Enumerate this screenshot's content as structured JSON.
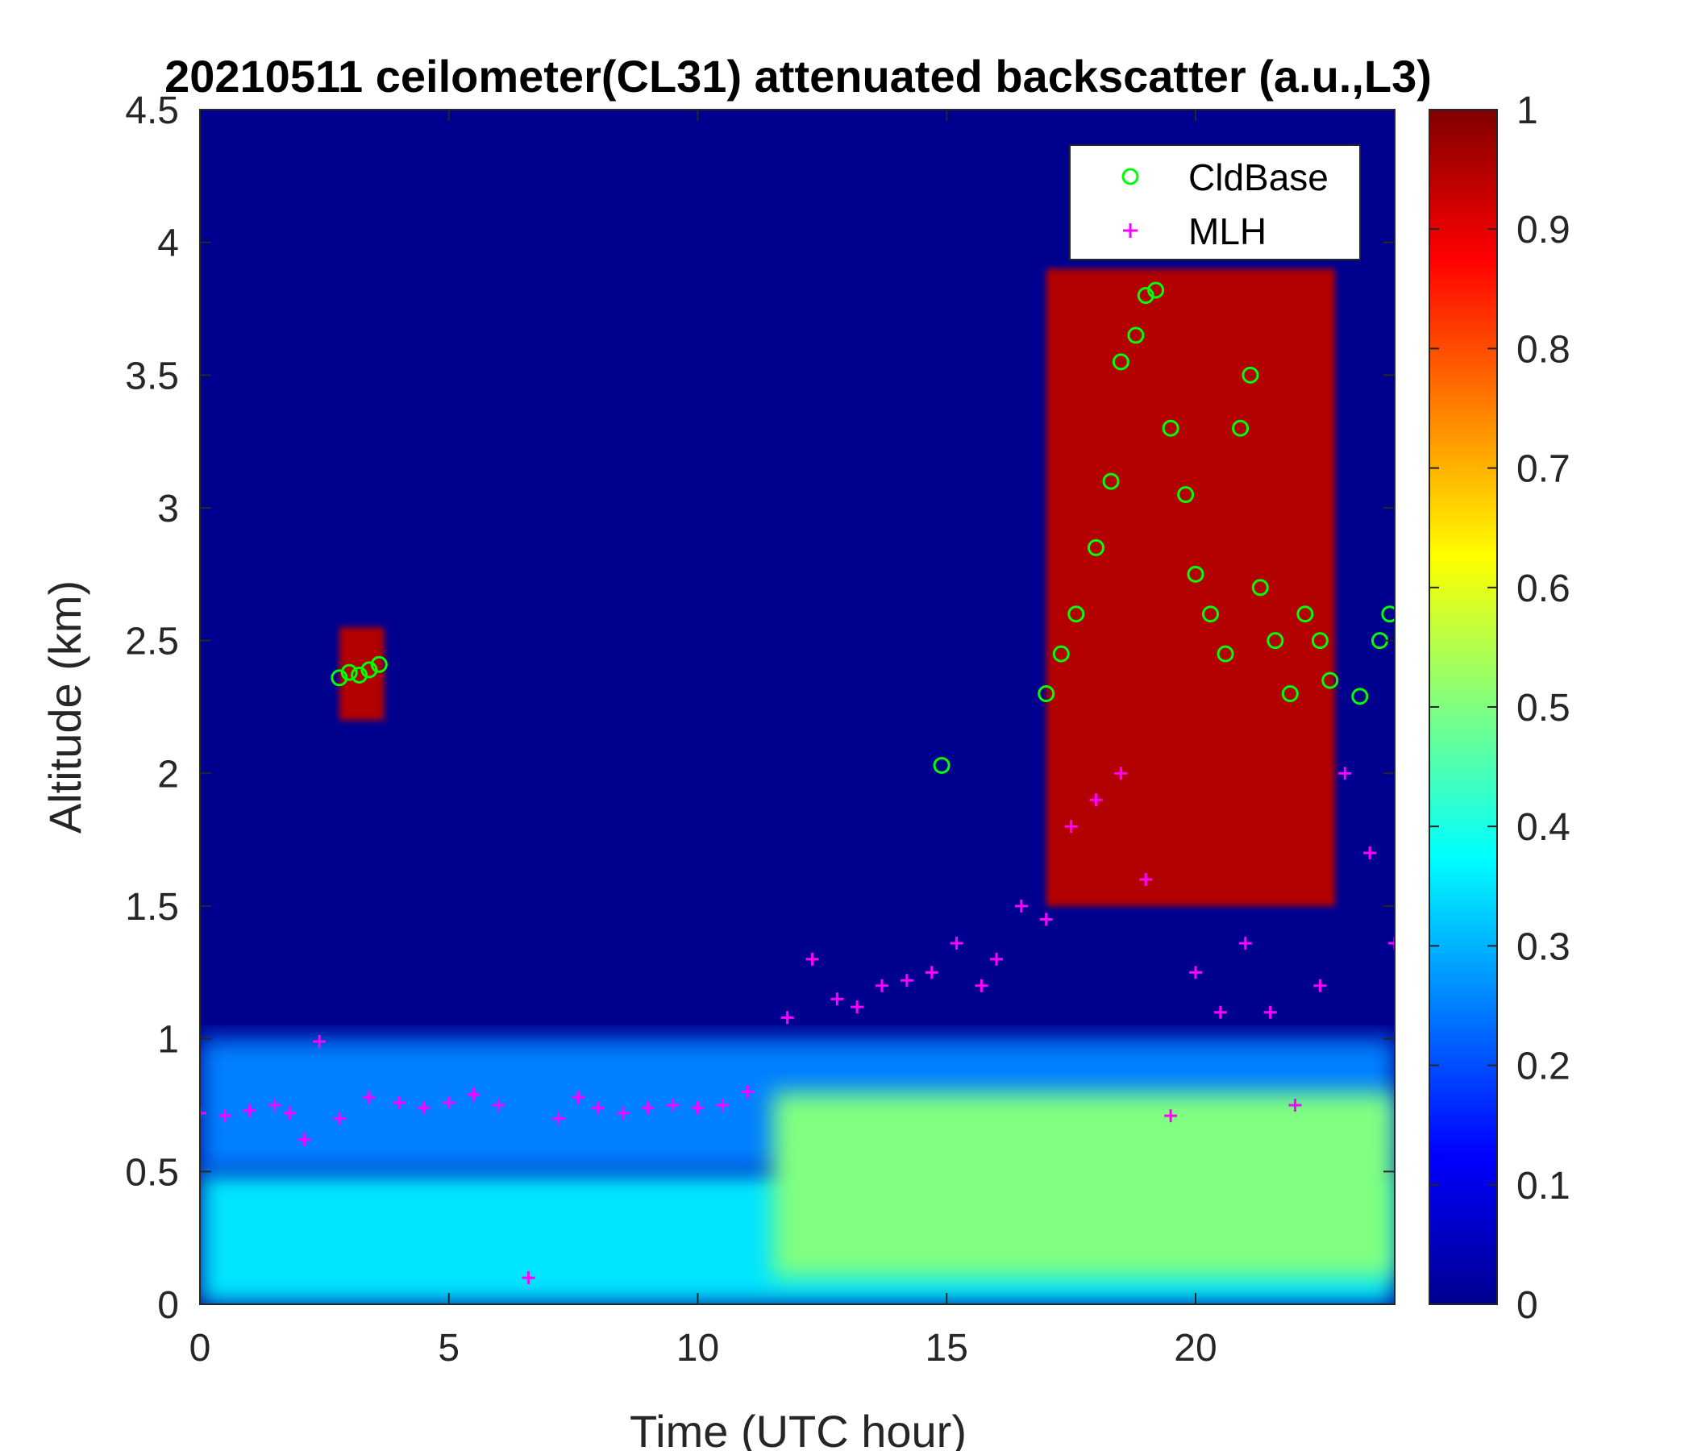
{
  "chart_data": {
    "type": "heatmap",
    "title": "20210511 ceilometer(CL31) attenuated backscatter (a.u.,L3)",
    "xlabel": "Time (UTC hour)",
    "ylabel": "Altitude (km)",
    "xlim": [
      0,
      24
    ],
    "ylim": [
      0,
      4.5
    ],
    "xticks": [
      "0",
      "5",
      "10",
      "15",
      "20"
    ],
    "yticks": [
      "0",
      "0.5",
      "1",
      "1.5",
      "2",
      "2.5",
      "3",
      "3.5",
      "4",
      "4.5"
    ],
    "colorbar": {
      "colormap": "jet",
      "clim": [
        0,
        1
      ],
      "ticks": [
        "0",
        "0.1",
        "0.2",
        "0.3",
        "0.4",
        "0.5",
        "0.6",
        "0.7",
        "0.8",
        "0.9",
        "1"
      ]
    },
    "legend": {
      "placement": "top-right",
      "entries": [
        {
          "label": "CldBase",
          "marker": "circle",
          "color": "#00ff00"
        },
        {
          "label": "MLH",
          "marker": "plus",
          "color": "#ff00ff"
        }
      ]
    },
    "backscatter_layers": [
      {
        "time": [
          0,
          24
        ],
        "altitude": [
          0,
          0.5
        ],
        "value": 0.35
      },
      {
        "time": [
          0,
          24
        ],
        "altitude": [
          0.5,
          1.0
        ],
        "value": 0.25
      },
      {
        "time": [
          11.5,
          24
        ],
        "altitude": [
          0.1,
          0.8
        ],
        "value": 0.5
      },
      {
        "time": [
          2.8,
          3.7
        ],
        "altitude": [
          2.2,
          2.55
        ],
        "value": 0.95
      },
      {
        "time": [
          17,
          22.8
        ],
        "altitude": [
          1.5,
          3.9
        ],
        "value": 0.95
      }
    ],
    "series": [
      {
        "name": "CldBase",
        "x": [
          2.8,
          3.0,
          3.2,
          3.4,
          3.6,
          14.9,
          17.0,
          17.3,
          17.6,
          18.0,
          18.3,
          18.5,
          18.8,
          19.0,
          19.2,
          19.5,
          19.8,
          20.0,
          20.3,
          20.6,
          20.9,
          21.1,
          21.3,
          21.6,
          21.9,
          22.2,
          22.5,
          22.7,
          23.3,
          23.7,
          23.9
        ],
        "y": [
          2.36,
          2.38,
          2.37,
          2.39,
          2.41,
          2.03,
          2.3,
          2.45,
          2.6,
          2.85,
          3.1,
          3.55,
          3.65,
          3.8,
          3.82,
          3.3,
          3.05,
          2.75,
          2.6,
          2.45,
          3.3,
          3.5,
          2.7,
          2.5,
          2.3,
          2.6,
          2.5,
          2.35,
          2.29,
          2.5,
          2.6
        ]
      },
      {
        "name": "MLH",
        "x": [
          0,
          0.5,
          1.0,
          1.5,
          1.8,
          2.1,
          2.4,
          2.8,
          3.4,
          4.0,
          4.5,
          5.0,
          5.5,
          6.0,
          6.6,
          7.2,
          7.6,
          8.0,
          8.5,
          9.0,
          9.5,
          10.0,
          10.5,
          11.0,
          11.8,
          12.3,
          12.8,
          13.2,
          13.7,
          14.2,
          14.7,
          15.2,
          15.7,
          16.0,
          16.5,
          17.0,
          17.5,
          18.0,
          18.5,
          19.0,
          19.5,
          20.0,
          20.5,
          21.0,
          21.5,
          22.0,
          22.5,
          23.0,
          23.5,
          24.0
        ],
        "y": [
          0.72,
          0.71,
          0.73,
          0.75,
          0.72,
          0.62,
          0.99,
          0.7,
          0.78,
          0.76,
          0.74,
          0.76,
          0.79,
          0.75,
          0.1,
          0.7,
          0.78,
          0.74,
          0.72,
          0.74,
          0.75,
          0.74,
          0.75,
          0.8,
          1.08,
          1.3,
          1.15,
          1.12,
          1.2,
          1.22,
          1.25,
          1.36,
          1.2,
          1.3,
          1.5,
          1.45,
          1.8,
          1.9,
          2.0,
          1.6,
          0.71,
          1.25,
          1.1,
          1.36,
          1.1,
          0.75,
          1.2,
          2.0,
          1.7,
          1.36
        ]
      }
    ]
  }
}
